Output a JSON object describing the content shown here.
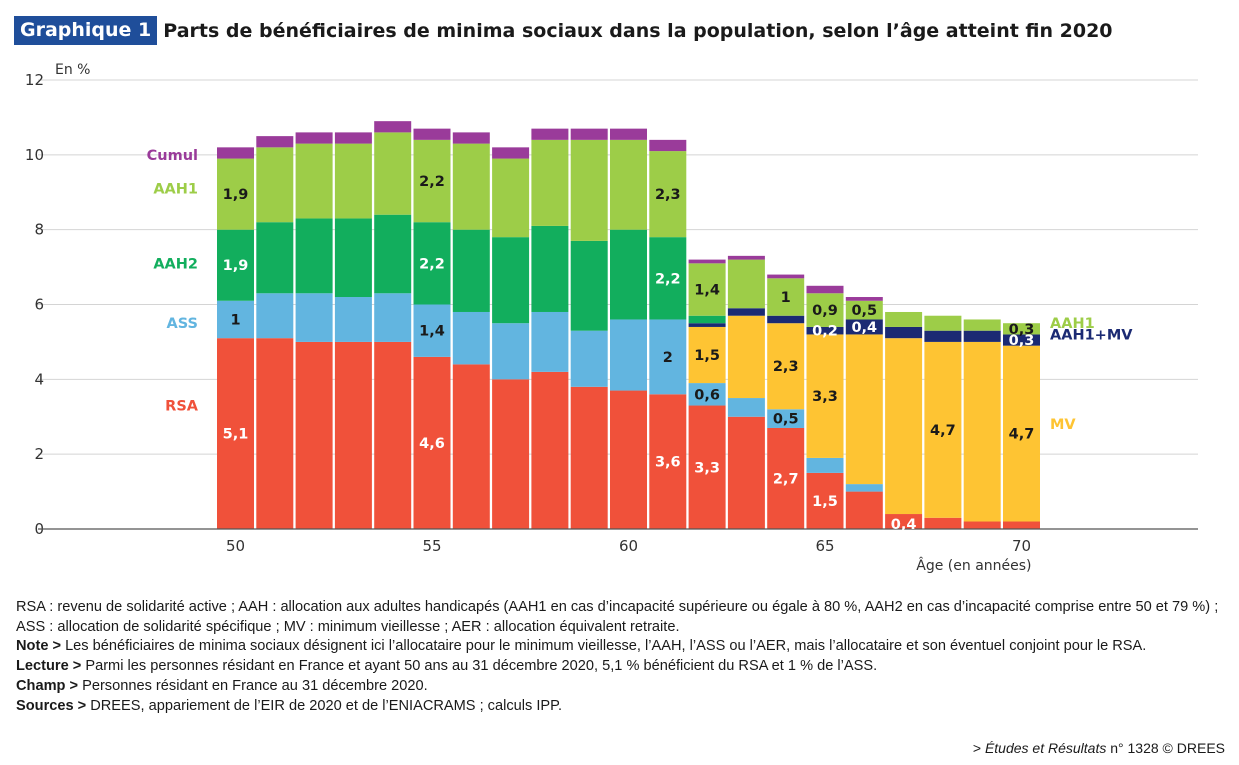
{
  "header": {
    "badge": "Graphique 1",
    "title": "Parts de bénéficiaires de minima sociaux dans la population, selon l’âge atteint fin 2020"
  },
  "colors": {
    "RSA": "#f0513a",
    "ASS": "#62b5e0",
    "MV": "#fec433",
    "AAH1MV": "#1b2a73",
    "AAH2": "#12ae5d",
    "AAH1": "#9dcd48",
    "Cumul": "#9a3b9a",
    "badge": "#1f4e9a"
  },
  "chart_data": {
    "type": "bar",
    "stacked": true,
    "title": "Parts de bénéficiaires de minima sociaux dans la population, selon l’âge atteint fin 2020",
    "ylabel": "En %",
    "xlabel": "Âge (en années)",
    "ylim": [
      0,
      12
    ],
    "yticks": [
      0,
      2,
      4,
      6,
      8,
      10,
      12
    ],
    "xticks": [
      50,
      55,
      60,
      65,
      70
    ],
    "grid": true,
    "x": [
      50,
      51,
      52,
      53,
      54,
      55,
      56,
      57,
      58,
      59,
      60,
      61,
      62,
      63,
      64,
      65,
      66,
      67,
      68,
      69,
      70
    ],
    "series": [
      {
        "name": "RSA",
        "values": [
          5.1,
          5.1,
          5.0,
          5.0,
          5.0,
          4.6,
          4.4,
          4.0,
          4.2,
          3.8,
          3.7,
          3.6,
          3.3,
          3.0,
          2.7,
          1.5,
          1.0,
          0.4,
          0.3,
          0.2,
          0.2
        ]
      },
      {
        "name": "ASS",
        "values": [
          1.0,
          1.2,
          1.3,
          1.2,
          1.3,
          1.4,
          1.4,
          1.5,
          1.6,
          1.5,
          1.9,
          2.0,
          0.6,
          0.5,
          0.5,
          0.4,
          0.2,
          0,
          0,
          0,
          0
        ]
      },
      {
        "name": "MV",
        "values": [
          0,
          0,
          0,
          0,
          0,
          0,
          0,
          0,
          0,
          0,
          0,
          0,
          1.5,
          2.2,
          2.3,
          3.3,
          4.0,
          4.7,
          4.7,
          4.8,
          4.7
        ]
      },
      {
        "name": "AAH1+MV",
        "values": [
          0,
          0,
          0,
          0,
          0,
          0,
          0,
          0,
          0,
          0,
          0,
          0,
          0.1,
          0.2,
          0.2,
          0.2,
          0.4,
          0.3,
          0.3,
          0.3,
          0.3
        ]
      },
      {
        "name": "AAH2",
        "values": [
          1.9,
          1.9,
          2.0,
          2.1,
          2.1,
          2.2,
          2.2,
          2.3,
          2.3,
          2.4,
          2.4,
          2.2,
          0.2,
          0,
          0,
          0,
          0,
          0,
          0,
          0,
          0
        ]
      },
      {
        "name": "AAH1",
        "values": [
          1.9,
          2.0,
          2.0,
          2.0,
          2.2,
          2.2,
          2.3,
          2.1,
          2.3,
          2.7,
          2.4,
          2.3,
          1.4,
          1.3,
          1.0,
          0.9,
          0.5,
          0.4,
          0.4,
          0.3,
          0.3
        ]
      },
      {
        "name": "Cumul",
        "values": [
          0.3,
          0.3,
          0.3,
          0.3,
          0.3,
          0.3,
          0.3,
          0.3,
          0.3,
          0.3,
          0.3,
          0.3,
          0.1,
          0.1,
          0.1,
          0.2,
          0.1,
          0,
          0,
          0,
          0
        ]
      }
    ],
    "data_labels": [
      {
        "x": 50,
        "series": "RSA",
        "text": "5,1"
      },
      {
        "x": 50,
        "series": "ASS",
        "text": "1"
      },
      {
        "x": 50,
        "series": "AAH2",
        "text": "1,9"
      },
      {
        "x": 50,
        "series": "AAH1",
        "text": "1,9"
      },
      {
        "x": 55,
        "series": "RSA",
        "text": "4,6"
      },
      {
        "x": 55,
        "series": "ASS",
        "text": "1,4"
      },
      {
        "x": 55,
        "series": "AAH2",
        "text": "2,2"
      },
      {
        "x": 55,
        "series": "AAH1",
        "text": "2,2"
      },
      {
        "x": 61,
        "series": "RSA",
        "text": "3,6"
      },
      {
        "x": 61,
        "series": "ASS",
        "text": "2"
      },
      {
        "x": 61,
        "series": "AAH2",
        "text": "2,2"
      },
      {
        "x": 61,
        "series": "AAH1",
        "text": "2,3"
      },
      {
        "x": 62,
        "series": "RSA",
        "text": "3,3"
      },
      {
        "x": 62,
        "series": "ASS",
        "text": "0,6"
      },
      {
        "x": 62,
        "series": "MV",
        "text": "1,5"
      },
      {
        "x": 62,
        "series": "AAH1",
        "text": "1,4"
      },
      {
        "x": 64,
        "series": "RSA",
        "text": "2,7"
      },
      {
        "x": 64,
        "series": "ASS",
        "text": "0,5"
      },
      {
        "x": 64,
        "series": "MV",
        "text": "2,3"
      },
      {
        "x": 64,
        "series": "AAH1",
        "text": "1"
      },
      {
        "x": 65,
        "series": "RSA",
        "text": "1,5"
      },
      {
        "x": 65,
        "series": "MV",
        "text": "3,3"
      },
      {
        "x": 65,
        "series": "AAH1+MV",
        "text": "0,2"
      },
      {
        "x": 65,
        "series": "AAH1",
        "text": "0,9"
      },
      {
        "x": 66,
        "series": "AAH1+MV",
        "text": "0,4"
      },
      {
        "x": 66,
        "series": "AAH1",
        "text": "0,5"
      },
      {
        "x": 67,
        "series": "RSA",
        "text": "0,4"
      },
      {
        "x": 68,
        "series": "MV",
        "text": "4,7"
      },
      {
        "x": 70,
        "series": "MV",
        "text": "4,7"
      },
      {
        "x": 70,
        "series": "AAH1+MV",
        "text": "0,3"
      },
      {
        "x": 70,
        "series": "AAH1",
        "text": "0,3"
      }
    ],
    "left_legend": [
      {
        "series": "Cumul",
        "label": "Cumul",
        "y": 10.0
      },
      {
        "series": "AAH1",
        "label": "AAH1",
        "y": 9.1
      },
      {
        "series": "AAH2",
        "label": "AAH2",
        "y": 7.1
      },
      {
        "series": "ASS",
        "label": "ASS",
        "y": 5.5
      },
      {
        "series": "RSA",
        "label": "RSA",
        "y": 3.3
      }
    ],
    "right_legend": [
      {
        "series": "AAH1",
        "label": "AAH1",
        "y": 5.5
      },
      {
        "series": "AAH1+MV",
        "label": "AAH1+MV",
        "y": 5.2
      },
      {
        "series": "MV",
        "label": "MV",
        "y": 2.8
      }
    ]
  },
  "notes": {
    "abbrev": "RSA : revenu de solidarité active ; AAH : allocation aux adultes handicapés (AAH1 en cas d’incapacité supérieure ou égale à 80 %, AAH2 en cas d’incapacité comprise entre 50 et 79 %) ; ASS : allocation de solidarité spécifique ; MV : minimum vieillesse ; AER : allocation équivalent retraite.",
    "note_label": "Note >",
    "note_text": " Les bénéficiaires de minima sociaux désignent ici l’allocataire pour le minimum vieillesse, l’AAH, l’ASS ou l’AER, mais l’allocataire et son éventuel conjoint pour le RSA.",
    "lecture_label": "Lecture >",
    "lecture_text": " Parmi les personnes résidant en France et ayant 50 ans au 31 décembre 2020, 5,1 % bénéficient du RSA et 1 % de l’ASS.",
    "champ_label": "Champ >",
    "champ_text": " Personnes résidant en France au 31 décembre 2020.",
    "sources_label": "Sources >",
    "sources_text": " DREES, appariement de l’EIR de 2020 et de l’ENIACRAMS ; calculs IPP."
  },
  "source_ref": {
    "prefix": "> ",
    "italic": "Études et Résultats",
    "rest": " n° 1328 © DREES"
  }
}
